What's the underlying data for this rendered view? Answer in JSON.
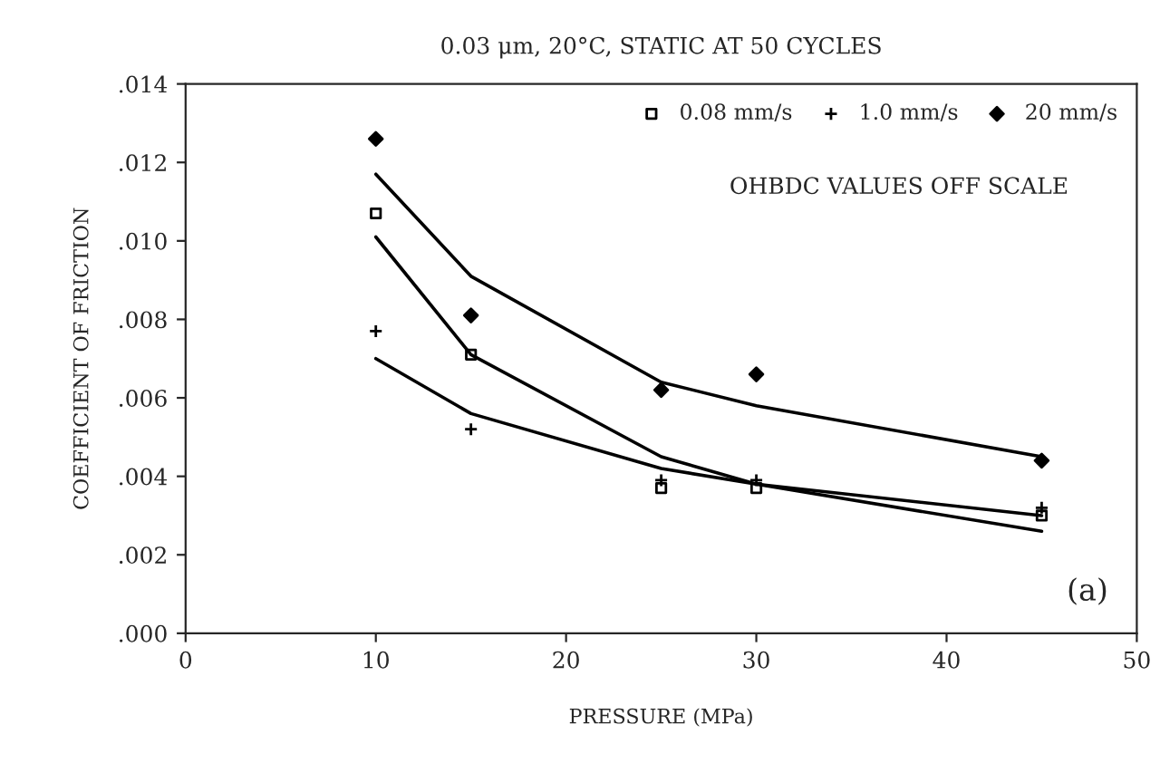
{
  "chart_data": {
    "type": "scatter",
    "title": "0.03 μm, 20°C, STATIC AT 50 CYCLES",
    "xlabel": "PRESSURE (MPa)",
    "ylabel": "COEFFICIENT OF FRICTION",
    "xlim": [
      0,
      50
    ],
    "xticks": [
      0,
      10,
      20,
      30,
      40,
      50
    ],
    "ylim": [
      0,
      0.014
    ],
    "yticks": [
      {
        "value": 0,
        "label": ".000"
      },
      {
        "value": 0.002,
        "label": ".002"
      },
      {
        "value": 0.004,
        "label": ".004"
      },
      {
        "value": 0.006,
        "label": ".006"
      },
      {
        "value": 0.008,
        "label": ".008"
      },
      {
        "value": 0.01,
        "label": ".010"
      },
      {
        "value": 0.012,
        "label": ".012"
      },
      {
        "value": 0.014,
        "label": ".014"
      }
    ],
    "grid": false,
    "legend": "top right",
    "series": [
      {
        "name": "0.08 mm/s",
        "marker": "square",
        "color": "#000000",
        "x": [
          10,
          15,
          25,
          30,
          45
        ],
        "values": [
          0.0107,
          0.0071,
          0.0037,
          0.0037,
          0.003
        ]
      },
      {
        "name": "1.0 mm/s",
        "marker": "cross",
        "color": "#000000",
        "x": [
          10,
          15,
          25,
          30,
          45
        ],
        "values": [
          0.0077,
          0.0052,
          0.0039,
          0.0039,
          0.0032
        ]
      },
      {
        "name": "20 mm/s",
        "marker": "diamond",
        "color": "#000000",
        "x": [
          10,
          15,
          25,
          30,
          45
        ],
        "values": [
          0.0126,
          0.0081,
          0.0062,
          0.0066,
          0.0044
        ]
      },
      {
        "type": "line",
        "marker": "none",
        "color": "#000000",
        "x": [
          10,
          15,
          25,
          30,
          45
        ],
        "values": [
          0.0101,
          0.0071,
          0.0045,
          0.0038,
          0.003
        ]
      },
      {
        "type": "line",
        "marker": "none",
        "color": "#000000",
        "x": [
          10,
          15,
          25,
          30,
          45
        ],
        "values": [
          0.007,
          0.0056,
          0.0042,
          0.0038,
          0.0026
        ]
      },
      {
        "type": "line",
        "marker": "none",
        "color": "#000000",
        "x": [
          10,
          15,
          25,
          30,
          45
        ],
        "values": [
          0.0117,
          0.0091,
          0.0064,
          0.0058,
          0.0045
        ]
      }
    ],
    "annotations": [
      "OHBDC VALUES OFF SCALE",
      "(a)"
    ]
  }
}
